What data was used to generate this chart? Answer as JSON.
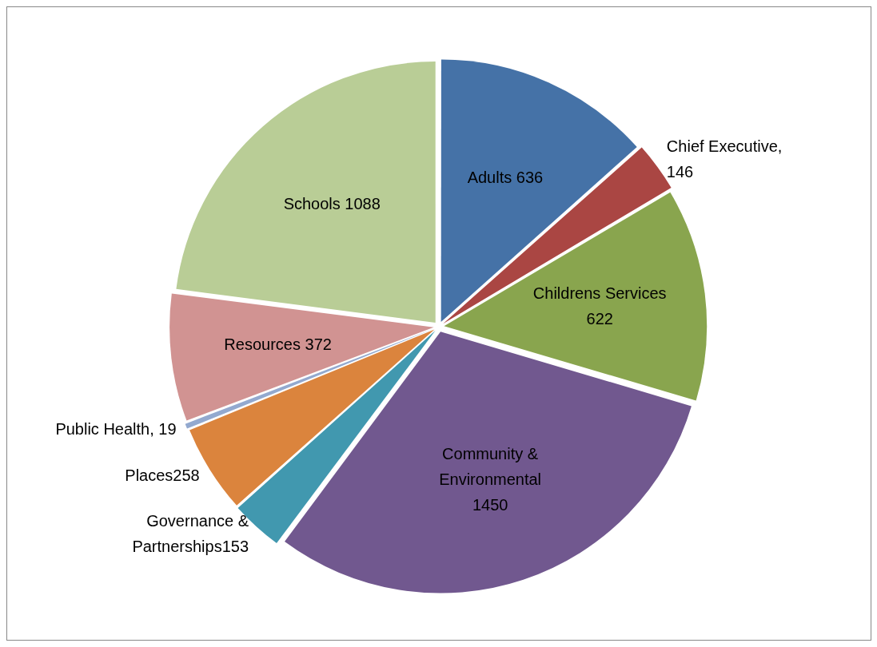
{
  "chart_data": {
    "type": "pie",
    "categories": [
      "Adults 636",
      "Chief Executive,\n146",
      "Childrens Services\n622",
      "Community &\nEnvironmental\n1450",
      "Governance &\nPartnerships153",
      "Places258",
      "Public Health, 19",
      "Resources 372",
      "Schools 1088"
    ],
    "values": [
      636,
      146,
      622,
      1450,
      153,
      258,
      19,
      372,
      1088
    ],
    "colors": [
      "#4572a7",
      "#aa4643",
      "#89a54e",
      "#71588f",
      "#4198af",
      "#db843d",
      "#93a9cf",
      "#d19392",
      "#b9cd96"
    ],
    "legend": false
  }
}
